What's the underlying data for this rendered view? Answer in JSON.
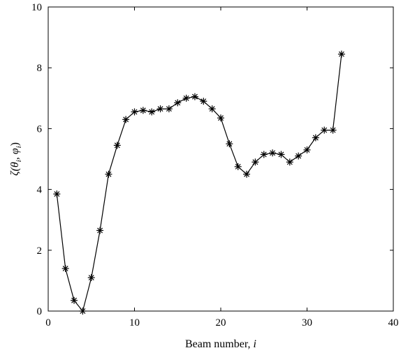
{
  "chart_data": {
    "type": "line",
    "marker": "asterisk",
    "xlabel": "Beam number, i",
    "xlabel_main": "Beam number, ",
    "xlabel_var": "i",
    "ylabel": "ζ(θi, φi)",
    "ylabel_parts": [
      "ζ(",
      "θ",
      "i",
      ", ",
      "φ",
      "i",
      ")"
    ],
    "xlim": [
      0,
      40
    ],
    "ylim": [
      0,
      10
    ],
    "xticks": [
      0,
      10,
      20,
      30,
      40
    ],
    "yticks": [
      0,
      2,
      4,
      6,
      8,
      10
    ],
    "grid": false,
    "series": [
      {
        "x": [
          1,
          2,
          3,
          4,
          5,
          6,
          7,
          8,
          9,
          10,
          11,
          12,
          13,
          14,
          15,
          16,
          17,
          18,
          19,
          20,
          21,
          22,
          23,
          24,
          25,
          26,
          27,
          28,
          29,
          30,
          31,
          32,
          33,
          34
        ],
        "values": [
          3.85,
          1.4,
          0.35,
          0.0,
          1.1,
          2.65,
          4.5,
          5.45,
          6.3,
          6.55,
          6.6,
          6.55,
          6.65,
          6.65,
          6.85,
          7.0,
          7.05,
          6.9,
          6.65,
          6.35,
          5.5,
          4.75,
          4.5,
          4.9,
          5.15,
          5.2,
          5.15,
          4.9,
          5.1,
          5.3,
          5.7,
          5.95,
          5.95,
          8.45
        ],
        "color": "#000000"
      }
    ]
  }
}
